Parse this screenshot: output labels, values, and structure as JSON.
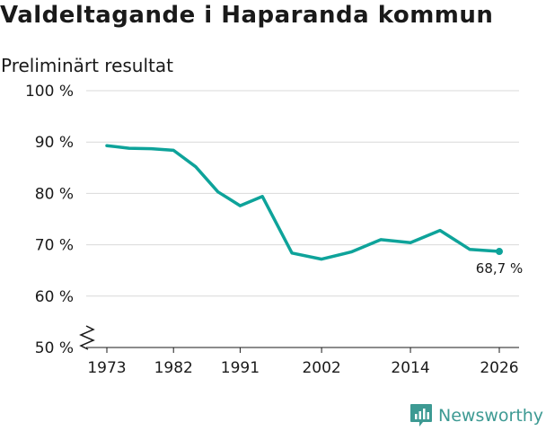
{
  "title": "Valdeltagande i Haparanda kommun",
  "subtitle": "Preliminärt resultat",
  "brand": {
    "name": "Newsworthy",
    "icon": "newsworthy-bar-chart-icon"
  },
  "colors": {
    "line": "#0ea39a",
    "grid": "#d9d9d9",
    "text": "#1a1a1a",
    "brand": "#3d9a93"
  },
  "chart_data": {
    "type": "line",
    "title": "Valdeltagande i Haparanda kommun",
    "subtitle": "Preliminärt resultat",
    "xlabel": "",
    "ylabel": "",
    "xlim": [
      1971,
      2028
    ],
    "ylim": [
      50,
      100
    ],
    "y_axis_broken": true,
    "grid": true,
    "x_ticks": [
      1973,
      1982,
      1991,
      2002,
      2014,
      2026
    ],
    "y_ticks": [
      50,
      60,
      70,
      80,
      90,
      100
    ],
    "y_tick_labels": [
      "50 %",
      "60 %",
      "70 %",
      "80 %",
      "90 %",
      "100 %"
    ],
    "series": [
      {
        "x": [
          1973,
          1976,
          1979,
          1982,
          1985,
          1988,
          1991,
          1994,
          1998,
          2002,
          2006,
          2010,
          2014,
          2018,
          2022,
          2026
        ],
        "values": [
          89.3,
          88.8,
          88.7,
          88.4,
          85.2,
          80.3,
          77.6,
          79.4,
          68.4,
          67.2,
          68.6,
          71.0,
          70.4,
          72.8,
          69.1,
          68.7
        ]
      }
    ],
    "end_label": "68,7 %"
  }
}
